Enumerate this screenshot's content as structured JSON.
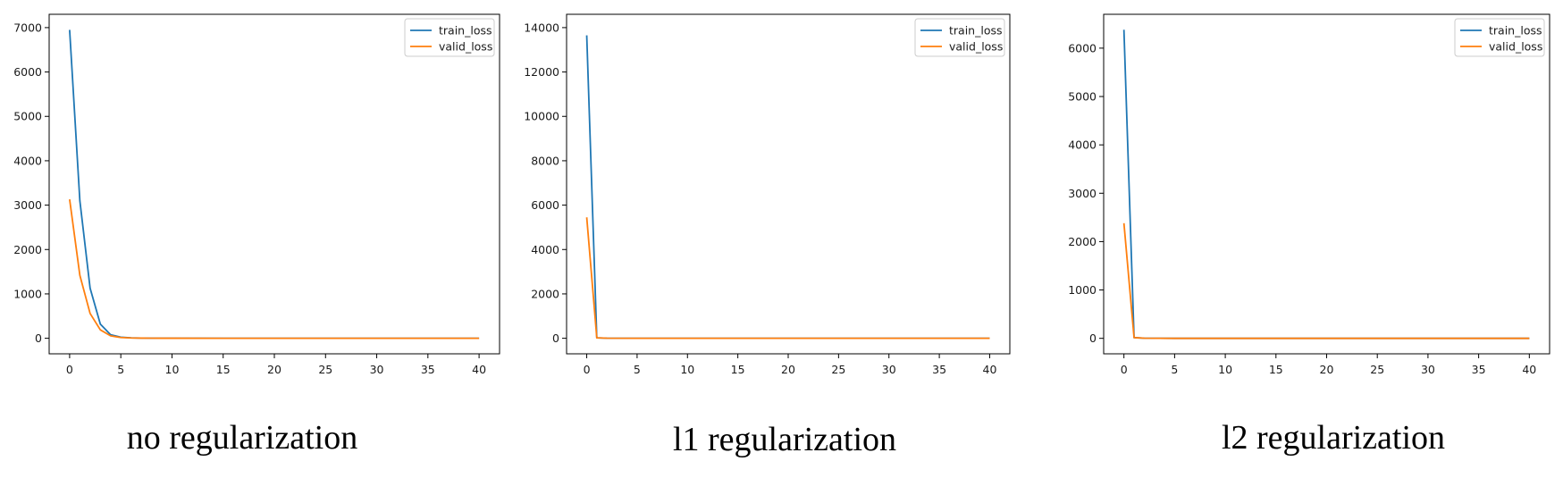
{
  "chart_data": [
    {
      "type": "line",
      "caption": "no regularization",
      "title": "",
      "xlabel": "",
      "ylabel": "",
      "xlim": [
        -2,
        42
      ],
      "ylim": [
        -350,
        7300
      ],
      "xticks": [
        0,
        5,
        10,
        15,
        20,
        25,
        30,
        35,
        40
      ],
      "yticks": [
        0,
        1000,
        2000,
        3000,
        4000,
        5000,
        6000,
        7000
      ],
      "legend": "top-right",
      "series": [
        {
          "name": "train_loss",
          "color": "#1f77b4",
          "x": [
            0,
            1,
            2,
            3,
            4,
            5,
            6,
            7,
            8,
            9,
            10,
            15,
            20,
            25,
            30,
            35,
            40
          ],
          "y": [
            6950,
            3100,
            1130,
            320,
            80,
            25,
            10,
            5,
            3,
            2,
            1,
            0,
            0,
            0,
            0,
            0,
            0
          ]
        },
        {
          "name": "valid_loss",
          "color": "#ff7f0e",
          "x": [
            0,
            1,
            2,
            3,
            4,
            5,
            6,
            7,
            8,
            9,
            10,
            15,
            20,
            25,
            30,
            35,
            40
          ],
          "y": [
            3130,
            1420,
            560,
            190,
            55,
            18,
            8,
            4,
            2,
            1,
            1,
            0,
            0,
            0,
            0,
            0,
            0
          ]
        }
      ]
    },
    {
      "type": "line",
      "caption": "l1 regularization",
      "title": "",
      "xlabel": "",
      "ylabel": "",
      "xlim": [
        -2,
        42
      ],
      "ylim": [
        -700,
        14600
      ],
      "xticks": [
        0,
        5,
        10,
        15,
        20,
        25,
        30,
        35,
        40
      ],
      "yticks": [
        0,
        2000,
        4000,
        6000,
        8000,
        10000,
        12000,
        14000
      ],
      "legend": "top-right",
      "series": [
        {
          "name": "train_loss",
          "color": "#1f77b4",
          "x": [
            0,
            1,
            2,
            5,
            10,
            15,
            20,
            25,
            30,
            35,
            40
          ],
          "y": [
            13650,
            20,
            5,
            0,
            0,
            0,
            0,
            0,
            0,
            0,
            0
          ]
        },
        {
          "name": "valid_loss",
          "color": "#ff7f0e",
          "x": [
            0,
            1,
            2,
            5,
            10,
            15,
            20,
            25,
            30,
            35,
            40
          ],
          "y": [
            5450,
            20,
            5,
            0,
            0,
            0,
            0,
            0,
            0,
            0,
            0
          ]
        }
      ]
    },
    {
      "type": "line",
      "caption": "l2 regularization",
      "title": "",
      "xlabel": "",
      "ylabel": "",
      "xlim": [
        -2,
        42
      ],
      "ylim": [
        -320,
        6700
      ],
      "xticks": [
        0,
        5,
        10,
        15,
        20,
        25,
        30,
        35,
        40
      ],
      "yticks": [
        0,
        1000,
        2000,
        3000,
        4000,
        5000,
        6000
      ],
      "legend": "top-right",
      "series": [
        {
          "name": "train_loss",
          "color": "#1f77b4",
          "x": [
            0,
            1,
            2,
            5,
            10,
            15,
            20,
            25,
            30,
            35,
            40
          ],
          "y": [
            6380,
            15,
            3,
            0,
            0,
            0,
            0,
            0,
            0,
            0,
            0
          ]
        },
        {
          "name": "valid_loss",
          "color": "#ff7f0e",
          "x": [
            0,
            1,
            2,
            5,
            10,
            15,
            20,
            25,
            30,
            35,
            40
          ],
          "y": [
            2380,
            15,
            3,
            0,
            0,
            0,
            0,
            0,
            0,
            0,
            0
          ]
        }
      ]
    }
  ]
}
